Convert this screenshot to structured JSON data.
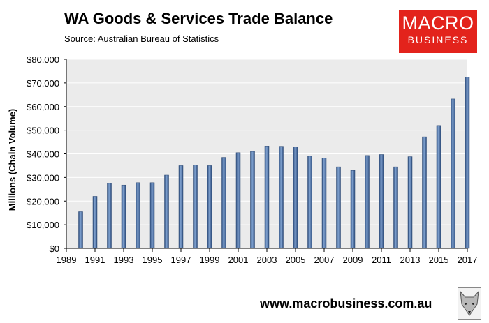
{
  "header": {
    "title": "WA Goods & Services Trade Balance",
    "subtitle": "Source:  Australian Bureau of Statistics"
  },
  "logo": {
    "line1": "MACRO",
    "line2": "BUSINESS",
    "color": "#e3231c",
    "icon": "fox-icon"
  },
  "footer": {
    "url": "www.macrobusiness.com.au"
  },
  "chart_data": {
    "type": "bar",
    "title": "WA Goods & Services Trade Balance",
    "ylabel": "Millions (Chain Volume)",
    "xlabel": "",
    "ylim": [
      0,
      80000
    ],
    "xlim": [
      1989,
      2017
    ],
    "yticks": [
      0,
      10000,
      20000,
      30000,
      40000,
      50000,
      60000,
      70000,
      80000
    ],
    "ytick_labels": [
      "$0",
      "$10,000",
      "$20,000",
      "$30,000",
      "$40,000",
      "$50,000",
      "$60,000",
      "$70,000",
      "$80,000"
    ],
    "xticks": [
      1989,
      1991,
      1993,
      1995,
      1997,
      1999,
      2001,
      2003,
      2005,
      2007,
      2009,
      2011,
      2013,
      2015,
      2017
    ],
    "x": [
      1990,
      1991,
      1992,
      1993,
      1994,
      1995,
      1996,
      1997,
      1998,
      1999,
      2000,
      2001,
      2002,
      2003,
      2004,
      2005,
      2006,
      2007,
      2008,
      2009,
      2010,
      2011,
      2012,
      2013,
      2014,
      2015,
      2016,
      2017
    ],
    "values": [
      15500,
      22000,
      27500,
      26800,
      27800,
      27800,
      31000,
      35000,
      35300,
      35000,
      38500,
      40500,
      41000,
      43300,
      43200,
      43000,
      39000,
      38200,
      34500,
      33000,
      39300,
      39700,
      34500,
      38800,
      47200,
      52000,
      63200,
      72500
    ],
    "bar_color": "#4a6fa5",
    "plot_background": "#ebebeb",
    "gridlines": true
  }
}
